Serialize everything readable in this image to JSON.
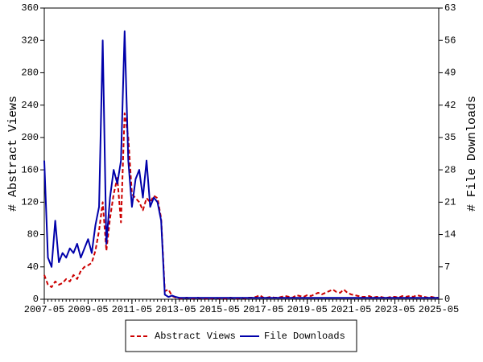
{
  "chart_data": {
    "type": "line",
    "y_label": "# Abstract Views",
    "y2_label": "# File Downloads",
    "x": [
      "2007-05",
      "2007-07",
      "2007-09",
      "2007-11",
      "2008-01",
      "2008-03",
      "2008-05",
      "2008-07",
      "2008-09",
      "2008-11",
      "2009-01",
      "2009-03",
      "2009-05",
      "2009-07",
      "2009-09",
      "2009-11",
      "2010-01",
      "2010-03",
      "2010-05",
      "2010-07",
      "2010-09",
      "2010-11",
      "2011-01",
      "2011-03",
      "2011-05",
      "2011-07",
      "2011-09",
      "2011-11",
      "2012-01",
      "2012-03",
      "2012-05",
      "2012-07",
      "2012-09",
      "2012-11",
      "2013-01",
      "2013-03",
      "2013-05",
      "2013-07",
      "2013-09",
      "2013-11",
      "2014-01",
      "2014-03",
      "2014-05",
      "2014-07",
      "2014-09",
      "2014-11",
      "2015-01",
      "2015-03",
      "2015-05",
      "2015-07",
      "2015-09",
      "2015-11",
      "2016-01",
      "2016-03",
      "2016-05",
      "2016-07",
      "2016-09",
      "2016-11",
      "2017-01",
      "2017-03",
      "2017-05",
      "2017-07",
      "2017-09",
      "2017-11",
      "2018-01",
      "2018-03",
      "2018-05",
      "2018-07",
      "2018-09",
      "2018-11",
      "2019-01",
      "2019-03",
      "2019-05",
      "2019-07",
      "2019-09",
      "2019-11",
      "2020-01",
      "2020-03",
      "2020-05",
      "2020-07",
      "2020-09",
      "2020-11",
      "2021-01",
      "2021-03",
      "2021-05",
      "2021-07",
      "2021-09",
      "2021-11",
      "2022-01",
      "2022-03",
      "2022-05",
      "2022-07",
      "2022-09",
      "2022-11",
      "2023-01",
      "2023-03",
      "2023-05",
      "2023-07",
      "2023-09",
      "2023-11",
      "2024-01",
      "2024-03",
      "2024-05",
      "2024-07",
      "2024-09",
      "2024-11",
      "2025-01",
      "2025-03",
      "2025-05"
    ],
    "xticks": [
      "2007-05",
      "2009-05",
      "2011-05",
      "2013-05",
      "2015-05",
      "2017-05",
      "2019-05",
      "2021-05",
      "2023-05",
      "2025-05"
    ],
    "ylim": [
      0,
      360
    ],
    "yticks": [
      0,
      40,
      80,
      120,
      160,
      200,
      240,
      280,
      320,
      360
    ],
    "y2lim": [
      0,
      63
    ],
    "y2ticks": [
      0,
      7,
      14,
      21,
      28,
      35,
      42,
      49,
      56,
      63
    ],
    "legend": "bottom",
    "series": [
      {
        "name": "Abstract Views",
        "color": "#cc0000",
        "dashed": true,
        "values": [
          30,
          18,
          15,
          22,
          18,
          20,
          25,
          22,
          30,
          25,
          35,
          40,
          42,
          45,
          60,
          85,
          120,
          60,
          100,
          130,
          150,
          95,
          230,
          200,
          130,
          125,
          120,
          110,
          125,
          120,
          128,
          125,
          100,
          10,
          12,
          4,
          2,
          1,
          1,
          2,
          1,
          1,
          2,
          1,
          1,
          1,
          1,
          2,
          1,
          1,
          1,
          2,
          1,
          1,
          2,
          1,
          2,
          2,
          3,
          5,
          2,
          2,
          3,
          2,
          2,
          3,
          4,
          3,
          2,
          5,
          4,
          3,
          5,
          4,
          6,
          8,
          6,
          8,
          10,
          12,
          9,
          8,
          12,
          8,
          6,
          5,
          4,
          3,
          3,
          4,
          2,
          3,
          3,
          2,
          2,
          3,
          3,
          2,
          4,
          3,
          4,
          3,
          5,
          4,
          3,
          2,
          3,
          2,
          2
        ]
      },
      {
        "name": "File Downloads",
        "color": "#0000aa",
        "axis": "y2",
        "values": [
          30,
          9,
          7,
          17,
          8,
          10,
          9,
          11,
          10,
          12,
          9,
          11,
          13,
          10,
          16,
          20,
          56,
          12,
          22,
          28,
          25,
          30,
          58,
          30,
          20,
          26,
          28,
          22,
          30,
          20,
          22,
          21,
          17,
          1,
          0.5,
          0.8,
          0.5,
          0.3,
          0.3,
          0.3,
          0.3,
          0.3,
          0.3,
          0.3,
          0.3,
          0.3,
          0.3,
          0.3,
          0.3,
          0.3,
          0.3,
          0.3,
          0.3,
          0.3,
          0.3,
          0.3,
          0.3,
          0.3,
          0.3,
          0.3,
          0.3,
          0.3,
          0.3,
          0.3,
          0.3,
          0.3,
          0.3,
          0.3,
          0.3,
          0.3,
          0.3,
          0.3,
          0.3,
          0.3,
          0.3,
          0.3,
          0.3,
          0.3,
          0.3,
          0.3,
          0.3,
          0.3,
          0.3,
          0.3,
          0.3,
          0.3,
          0.3,
          0.3,
          0.3,
          0.3,
          0.3,
          0.3,
          0.3,
          0.3,
          0.3,
          0.3,
          0.3,
          0.3,
          0.3,
          0.3,
          0.3,
          0.3,
          0.3,
          0.3,
          0.3,
          0.3,
          0.3,
          0.3,
          0.3
        ]
      }
    ]
  }
}
